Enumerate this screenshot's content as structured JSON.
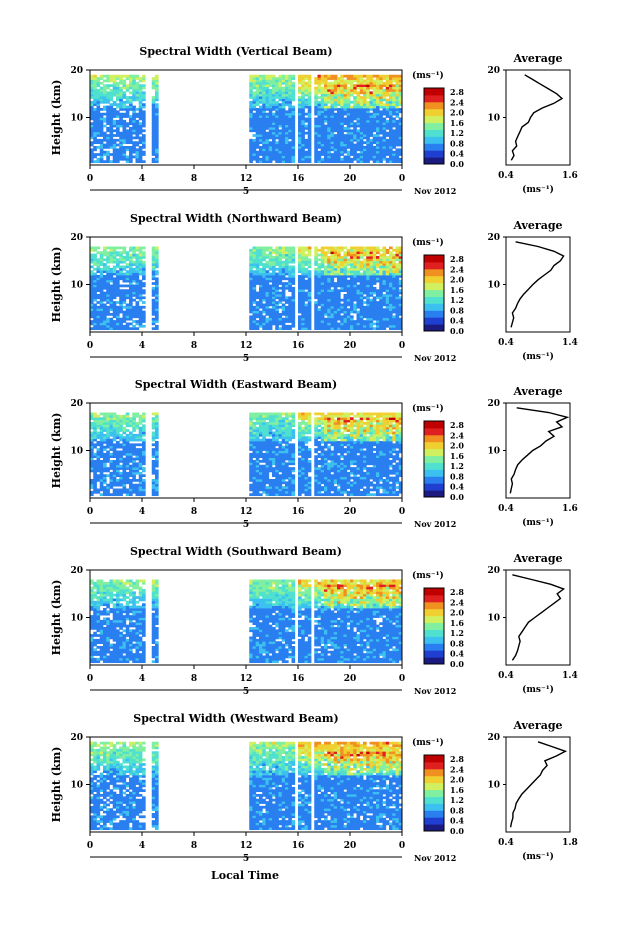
{
  "figure": {
    "x_axis_label": "Local Time",
    "date_label": "Nov 2012",
    "day_label": "5",
    "unit_label": "(ms⁻¹)",
    "average_title": "Average",
    "height_label": "Height (km)"
  },
  "colormap": {
    "stops": [
      "#1a1a80",
      "#1f3fd0",
      "#2a7ff0",
      "#3cc0f0",
      "#50e0d0",
      "#80f0a0",
      "#d0f060",
      "#f0d030",
      "#f09020",
      "#e02020",
      "#c00000"
    ]
  },
  "chart_data": [
    {
      "type": "heatmap",
      "title": "Spectral Width (Vertical Beam)",
      "ylabel": "Height (km)",
      "xlim": [
        0,
        24
      ],
      "ylim": [
        0,
        20
      ],
      "x_ticks": [
        "0",
        "4",
        "8",
        "12",
        "16",
        "20",
        "0"
      ],
      "y_ticks": [
        "20",
        "10"
      ],
      "colorbar": {
        "ticks": [
          "2.8",
          "2.4",
          "2.0",
          "1.6",
          "1.2",
          "0.8",
          "0.4",
          "0.0"
        ],
        "range": [
          0,
          2.8
        ]
      },
      "data_gaps": [
        [
          4.2,
          4.8
        ],
        [
          5.2,
          12.2
        ],
        [
          15.8,
          16.1
        ],
        [
          17.0,
          17.3
        ]
      ],
      "data_top_km": 19,
      "profile": {
        "x_ticks": [
          "0.4",
          "1.6"
        ],
        "xlim": [
          0.4,
          1.6
        ],
        "y_ticks": [
          "20",
          "10"
        ],
        "xlabel": "(ms⁻¹)",
        "heights": [
          1,
          2,
          3,
          4,
          5,
          6,
          7,
          8,
          9,
          10,
          11,
          12,
          13,
          14,
          15,
          16,
          17,
          18,
          19
        ],
        "values": [
          0.5,
          0.55,
          0.52,
          0.6,
          0.58,
          0.62,
          0.66,
          0.7,
          0.82,
          0.86,
          0.92,
          1.08,
          1.3,
          1.45,
          1.35,
          1.2,
          1.05,
          0.9,
          0.75
        ]
      }
    },
    {
      "type": "heatmap",
      "title": "Spectral Width (Northward Beam)",
      "ylabel": "Height (km)",
      "xlim": [
        0,
        24
      ],
      "ylim": [
        0,
        20
      ],
      "x_ticks": [
        "0",
        "4",
        "8",
        "12",
        "16",
        "20",
        "0"
      ],
      "y_ticks": [
        "20",
        "10"
      ],
      "colorbar": {
        "ticks": [
          "2.8",
          "2.4",
          "2.0",
          "1.6",
          "1.2",
          "0.8",
          "0.4",
          "0.0"
        ],
        "range": [
          0,
          2.8
        ]
      },
      "data_gaps": [
        [
          4.2,
          4.8
        ],
        [
          5.2,
          12.2
        ],
        [
          15.8,
          16.1
        ],
        [
          17.0,
          17.3
        ]
      ],
      "data_top_km": 18,
      "profile": {
        "x_ticks": [
          "0.4",
          "1.4"
        ],
        "xlim": [
          0.4,
          1.4
        ],
        "y_ticks": [
          "20",
          "10"
        ],
        "xlabel": "(ms⁻¹)",
        "heights": [
          1,
          2,
          3,
          4,
          5,
          6,
          7,
          8,
          9,
          10,
          11,
          12,
          13,
          14,
          15,
          16,
          17,
          18,
          19
        ],
        "values": [
          0.48,
          0.5,
          0.52,
          0.5,
          0.55,
          0.58,
          0.62,
          0.68,
          0.75,
          0.82,
          0.9,
          1.0,
          1.1,
          1.15,
          1.25,
          1.3,
          1.15,
          0.9,
          0.55
        ]
      }
    },
    {
      "type": "heatmap",
      "title": "Spectral Width (Eastward Beam)",
      "ylabel": "Height (km)",
      "xlim": [
        0,
        24
      ],
      "ylim": [
        0,
        20
      ],
      "x_ticks": [
        "0",
        "4",
        "8",
        "12",
        "16",
        "20",
        "0"
      ],
      "y_ticks": [
        "20",
        "10"
      ],
      "colorbar": {
        "ticks": [
          "2.8",
          "2.4",
          "2.0",
          "1.6",
          "1.2",
          "0.8",
          "0.4",
          "0.0"
        ],
        "range": [
          0,
          2.8
        ]
      },
      "data_gaps": [
        [
          4.2,
          4.8
        ],
        [
          5.2,
          12.2
        ],
        [
          15.8,
          16.1
        ],
        [
          17.0,
          17.3
        ]
      ],
      "data_top_km": 18,
      "profile": {
        "x_ticks": [
          "0.4",
          "1.6"
        ],
        "xlim": [
          0.4,
          1.6
        ],
        "y_ticks": [
          "20",
          "10"
        ],
        "xlabel": "(ms⁻¹)",
        "heights": [
          1,
          2,
          3,
          4,
          5,
          6,
          7,
          8,
          9,
          10,
          11,
          12,
          13,
          14,
          15,
          16,
          17,
          18,
          19
        ],
        "values": [
          0.48,
          0.5,
          0.52,
          0.5,
          0.55,
          0.58,
          0.62,
          0.7,
          0.8,
          0.9,
          1.05,
          1.15,
          1.3,
          1.2,
          1.45,
          1.35,
          1.55,
          1.2,
          0.6
        ]
      }
    },
    {
      "type": "heatmap",
      "title": "Spectral Width (Southward Beam)",
      "ylabel": "Height (km)",
      "xlim": [
        0,
        24
      ],
      "ylim": [
        0,
        20
      ],
      "x_ticks": [
        "0",
        "4",
        "8",
        "12",
        "16",
        "20",
        "0"
      ],
      "y_ticks": [
        "20",
        "10"
      ],
      "colorbar": {
        "ticks": [
          "2.8",
          "2.4",
          "2.0",
          "1.6",
          "1.2",
          "0.8",
          "0.4",
          "0.0"
        ],
        "range": [
          0,
          2.8
        ]
      },
      "data_gaps": [
        [
          4.2,
          4.8
        ],
        [
          5.2,
          12.2
        ],
        [
          15.8,
          16.1
        ],
        [
          17.0,
          17.3
        ]
      ],
      "data_top_km": 18,
      "profile": {
        "x_ticks": [
          "0.4",
          "1.4"
        ],
        "xlim": [
          0.4,
          1.4
        ],
        "y_ticks": [
          "20",
          "10"
        ],
        "xlabel": "(ms⁻¹)",
        "heights": [
          1,
          2,
          3,
          4,
          5,
          6,
          7,
          8,
          9,
          10,
          11,
          12,
          13,
          14,
          15,
          16,
          17,
          18,
          19
        ],
        "values": [
          0.5,
          0.55,
          0.58,
          0.6,
          0.62,
          0.6,
          0.65,
          0.7,
          0.75,
          0.85,
          0.95,
          1.05,
          1.15,
          1.25,
          1.2,
          1.3,
          1.1,
          0.8,
          0.5
        ]
      }
    },
    {
      "type": "heatmap",
      "title": "Spectral Width (Westward Beam)",
      "ylabel": "Height (km)",
      "xlim": [
        0,
        24
      ],
      "ylim": [
        0,
        20
      ],
      "x_ticks": [
        "0",
        "4",
        "8",
        "12",
        "16",
        "20",
        "0"
      ],
      "y_ticks": [
        "20",
        "10"
      ],
      "colorbar": {
        "ticks": [
          "2.8",
          "2.4",
          "2.0",
          "1.6",
          "1.2",
          "0.8",
          "0.4",
          "0.0"
        ],
        "range": [
          0,
          2.8
        ]
      },
      "data_gaps": [
        [
          4.2,
          4.8
        ],
        [
          5.2,
          12.2
        ],
        [
          15.8,
          16.1
        ],
        [
          17.0,
          17.3
        ]
      ],
      "data_top_km": 19,
      "profile": {
        "x_ticks": [
          "0.4",
          "1.8"
        ],
        "xlim": [
          0.4,
          1.8
        ],
        "y_ticks": [
          "20",
          "10"
        ],
        "xlabel": "(ms⁻¹)",
        "heights": [
          1,
          2,
          3,
          4,
          5,
          6,
          7,
          8,
          9,
          10,
          11,
          12,
          13,
          14,
          15,
          16,
          17,
          18,
          19
        ],
        "values": [
          0.5,
          0.52,
          0.55,
          0.55,
          0.6,
          0.62,
          0.68,
          0.75,
          0.85,
          0.95,
          1.05,
          1.15,
          1.2,
          1.3,
          1.25,
          1.5,
          1.7,
          1.4,
          1.1
        ]
      }
    }
  ]
}
